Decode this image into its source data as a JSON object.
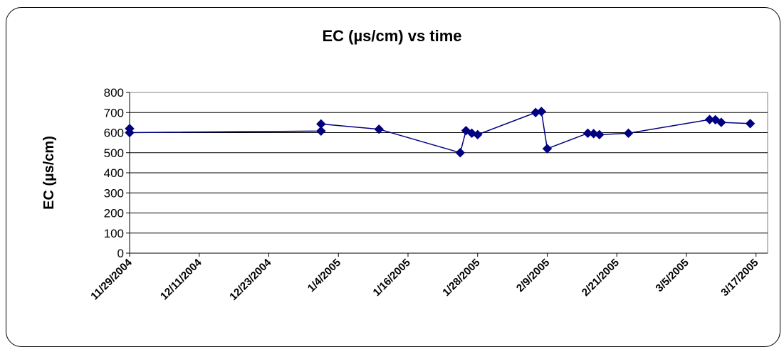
{
  "chart_data": {
    "type": "line",
    "title": "EC (µs/cm) vs time",
    "ylabel": "EC (µs/cm)",
    "xlabel": "",
    "ylim": [
      0,
      800
    ],
    "y_ticks": [
      "0",
      "100",
      "200",
      "300",
      "400",
      "500",
      "600",
      "700",
      "800"
    ],
    "x_ticks": [
      "11/29/2004",
      "12/11/2004",
      "12/23/2004",
      "1/4/2005",
      "1/16/2005",
      "1/28/2005",
      "2/9/2005",
      "2/21/2005",
      "3/5/2005",
      "3/17/2005"
    ],
    "x_range": [
      "2004-11-29",
      "2005-03-19"
    ],
    "grid": "horizontal",
    "legend": "none",
    "series": [
      {
        "color": "#000080",
        "points": [
          {
            "x": "2004-11-29",
            "y": 620
          },
          {
            "x": "2004-11-29",
            "y": 600
          },
          {
            "x": "2005-01-01",
            "y": 608
          },
          {
            "x": "2005-01-01",
            "y": 643
          },
          {
            "x": "2005-01-11",
            "y": 617
          },
          {
            "x": "2005-01-25",
            "y": 500
          },
          {
            "x": "2005-01-26",
            "y": 610
          },
          {
            "x": "2005-01-27",
            "y": 597
          },
          {
            "x": "2005-01-28",
            "y": 590
          },
          {
            "x": "2005-02-07",
            "y": 700
          },
          {
            "x": "2005-02-08",
            "y": 705
          },
          {
            "x": "2005-02-09",
            "y": 520
          },
          {
            "x": "2005-02-16",
            "y": 597
          },
          {
            "x": "2005-02-17",
            "y": 595
          },
          {
            "x": "2005-02-18",
            "y": 590
          },
          {
            "x": "2005-02-23",
            "y": 597
          },
          {
            "x": "2005-03-09",
            "y": 665
          },
          {
            "x": "2005-03-10",
            "y": 664
          },
          {
            "x": "2005-03-11",
            "y": 651
          },
          {
            "x": "2005-03-16",
            "y": 645
          }
        ]
      }
    ]
  }
}
